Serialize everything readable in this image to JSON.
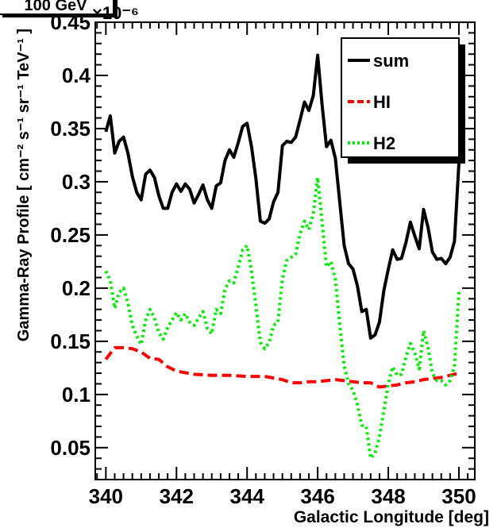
{
  "header_label": "100 GeV",
  "chart_data": {
    "type": "line",
    "xlabel": "Galactic Longitude [deg]",
    "ylabel": "Gamma-Ray Profile [ cm⁻² s⁻¹ sr⁻¹ TeV⁻¹ ]",
    "y_multiplier": "×10⁻⁶",
    "xlim": [
      339.7,
      350.45
    ],
    "ylim": [
      0.02,
      0.45
    ],
    "x_ticks": [
      340,
      342,
      344,
      346,
      348,
      350
    ],
    "x_tick_labels": [
      "340",
      "342",
      "344",
      "346",
      "348",
      "350"
    ],
    "y_ticks": [
      0.05,
      0.1,
      0.15,
      0.2,
      0.25,
      0.3,
      0.35,
      0.4,
      0.45
    ],
    "y_tick_labels": [
      "0.05",
      "0.1",
      "0.15",
      "0.2",
      "0.25",
      "0.3",
      "0.35",
      "0.4",
      "0.45"
    ],
    "grid": false,
    "legend_position": "top-right",
    "series": [
      {
        "name": "sum",
        "color": "#000000",
        "style": "solid",
        "x": [
          340.0,
          340.125,
          340.25,
          340.375,
          340.5,
          340.625,
          340.75,
          340.875,
          341.0,
          341.125,
          341.25,
          341.375,
          341.5,
          341.625,
          341.75,
          341.875,
          342.0,
          342.125,
          342.25,
          342.375,
          342.5,
          342.625,
          342.75,
          342.875,
          343.0,
          343.125,
          343.25,
          343.375,
          343.5,
          343.625,
          343.75,
          343.875,
          344.0,
          344.125,
          344.25,
          344.375,
          344.5,
          344.625,
          344.75,
          344.875,
          345.0,
          345.125,
          345.25,
          345.375,
          345.5,
          345.625,
          345.75,
          345.875,
          346.0,
          346.125,
          346.25,
          346.375,
          346.5,
          346.625,
          346.75,
          346.875,
          347.0,
          347.125,
          347.25,
          347.375,
          347.5,
          347.625,
          347.75,
          347.875,
          348.0,
          348.125,
          348.25,
          348.375,
          348.5,
          348.625,
          348.75,
          348.875,
          349.0,
          349.125,
          349.25,
          349.375,
          349.5,
          349.625,
          349.75,
          349.875,
          350.0
        ],
        "values": [
          0.347,
          0.362,
          0.327,
          0.338,
          0.342,
          0.327,
          0.305,
          0.29,
          0.283,
          0.307,
          0.311,
          0.304,
          0.287,
          0.275,
          0.275,
          0.29,
          0.298,
          0.291,
          0.298,
          0.293,
          0.28,
          0.288,
          0.297,
          0.283,
          0.275,
          0.296,
          0.299,
          0.32,
          0.33,
          0.323,
          0.337,
          0.352,
          0.355,
          0.333,
          0.303,
          0.263,
          0.261,
          0.265,
          0.281,
          0.29,
          0.334,
          0.338,
          0.337,
          0.342,
          0.358,
          0.375,
          0.367,
          0.381,
          0.419,
          0.372,
          0.333,
          0.339,
          0.322,
          0.281,
          0.24,
          0.223,
          0.218,
          0.202,
          0.178,
          0.18,
          0.153,
          0.156,
          0.168,
          0.198,
          0.218,
          0.236,
          0.227,
          0.228,
          0.243,
          0.262,
          0.249,
          0.237,
          0.274,
          0.257,
          0.234,
          0.227,
          0.228,
          0.223,
          0.229,
          0.244,
          0.318
        ]
      },
      {
        "name": "HI",
        "color": "#ff0000",
        "style": "dashed",
        "x": [
          340.0,
          340.25,
          340.5,
          340.75,
          341.0,
          341.25,
          341.5,
          341.75,
          342.0,
          342.5,
          343.0,
          343.5,
          344.0,
          344.5,
          345.0,
          345.25,
          345.5,
          345.75,
          346.0,
          346.25,
          346.5,
          346.75,
          347.0,
          347.25,
          347.5,
          347.75,
          348.0,
          348.25,
          348.5,
          348.75,
          349.0,
          349.25,
          349.5,
          349.75,
          350.0
        ],
        "values": [
          0.133,
          0.144,
          0.144,
          0.143,
          0.14,
          0.134,
          0.133,
          0.126,
          0.122,
          0.119,
          0.118,
          0.118,
          0.117,
          0.117,
          0.114,
          0.111,
          0.111,
          0.112,
          0.112,
          0.113,
          0.114,
          0.113,
          0.112,
          0.111,
          0.111,
          0.107,
          0.108,
          0.109,
          0.111,
          0.112,
          0.114,
          0.115,
          0.116,
          0.118,
          0.12
        ]
      },
      {
        "name": "H2",
        "color": "#00ee00",
        "style": "dotted",
        "x": [
          340.0,
          340.125,
          340.25,
          340.375,
          340.5,
          340.625,
          340.75,
          340.875,
          341.0,
          341.125,
          341.25,
          341.375,
          341.5,
          341.625,
          341.75,
          341.875,
          342.0,
          342.125,
          342.25,
          342.375,
          342.5,
          342.625,
          342.75,
          342.875,
          343.0,
          343.125,
          343.25,
          343.375,
          343.5,
          343.625,
          343.75,
          343.875,
          344.0,
          344.125,
          344.25,
          344.375,
          344.5,
          344.625,
          344.75,
          344.875,
          345.0,
          345.125,
          345.25,
          345.375,
          345.5,
          345.625,
          345.75,
          345.875,
          346.0,
          346.125,
          346.25,
          346.375,
          346.5,
          346.625,
          346.75,
          346.875,
          347.0,
          347.125,
          347.25,
          347.375,
          347.5,
          347.625,
          347.75,
          347.875,
          348.0,
          348.125,
          348.25,
          348.375,
          348.5,
          348.625,
          348.75,
          348.875,
          349.0,
          349.125,
          349.25,
          349.375,
          349.5,
          349.625,
          349.75,
          349.875,
          350.0
        ],
        "values": [
          0.216,
          0.207,
          0.181,
          0.196,
          0.2,
          0.186,
          0.165,
          0.155,
          0.147,
          0.17,
          0.18,
          0.172,
          0.158,
          0.152,
          0.163,
          0.17,
          0.177,
          0.17,
          0.176,
          0.168,
          0.165,
          0.172,
          0.178,
          0.162,
          0.157,
          0.18,
          0.176,
          0.199,
          0.207,
          0.205,
          0.22,
          0.236,
          0.24,
          0.216,
          0.184,
          0.149,
          0.143,
          0.149,
          0.165,
          0.168,
          0.209,
          0.226,
          0.229,
          0.232,
          0.251,
          0.263,
          0.255,
          0.27,
          0.304,
          0.262,
          0.22,
          0.225,
          0.208,
          0.166,
          0.127,
          0.11,
          0.104,
          0.09,
          0.071,
          0.07,
          0.04,
          0.045,
          0.06,
          0.085,
          0.11,
          0.126,
          0.118,
          0.119,
          0.135,
          0.148,
          0.139,
          0.124,
          0.16,
          0.144,
          0.12,
          0.113,
          0.113,
          0.109,
          0.113,
          0.126,
          0.197
        ]
      }
    ]
  }
}
